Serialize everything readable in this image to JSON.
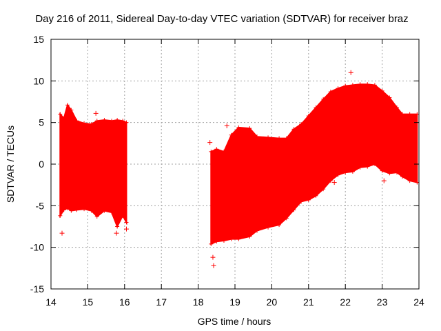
{
  "chart_data": {
    "type": "scatter",
    "title": "Day 216 of 2011, Sidereal Day-to-day VTEC variation (SDTVAR) for receiver braz",
    "xlabel": "GPS time / hours",
    "ylabel": "SDTVAR / TECUs",
    "xlim": [
      14,
      24
    ],
    "ylim": [
      -15,
      15
    ],
    "x_ticks": [
      "14",
      "15",
      "16",
      "17",
      "18",
      "19",
      "20",
      "21",
      "22",
      "23",
      "24"
    ],
    "y_ticks": [
      "15",
      "10",
      "5",
      "0",
      "-5",
      "-10",
      "-15"
    ],
    "grid": true,
    "marker": "+",
    "series_color": "#ff0000",
    "series": [
      {
        "segment": 1,
        "envelope": [
          {
            "x": 14.25,
            "ymin": -6.2,
            "ymax": 6.0
          },
          {
            "x": 14.35,
            "ymin": -5.5,
            "ymax": 5.5
          },
          {
            "x": 14.45,
            "ymin": -5.3,
            "ymax": 7.1
          },
          {
            "x": 14.55,
            "ymin": -5.6,
            "ymax": 6.5
          },
          {
            "x": 14.7,
            "ymin": -5.5,
            "ymax": 5.2
          },
          {
            "x": 14.9,
            "ymin": -5.4,
            "ymax": 4.9
          },
          {
            "x": 15.1,
            "ymin": -5.6,
            "ymax": 4.8
          },
          {
            "x": 15.25,
            "ymin": -6.3,
            "ymax": 5.2
          },
          {
            "x": 15.45,
            "ymin": -5.6,
            "ymax": 5.3
          },
          {
            "x": 15.65,
            "ymin": -5.8,
            "ymax": 5.2
          },
          {
            "x": 15.8,
            "ymin": -7.5,
            "ymax": 5.3
          },
          {
            "x": 15.95,
            "ymin": -6.2,
            "ymax": 5.2
          },
          {
            "x": 16.05,
            "ymin": -7.0,
            "ymax": 5.0
          }
        ],
        "outliers": [
          {
            "x": 14.3,
            "y": -8.3
          },
          {
            "x": 15.22,
            "y": 6.1
          },
          {
            "x": 15.78,
            "y": -8.3
          },
          {
            "x": 16.05,
            "y": -7.8
          }
        ]
      },
      {
        "segment": 2,
        "envelope": [
          {
            "x": 18.35,
            "ymin": -9.6,
            "ymax": 1.5
          },
          {
            "x": 18.5,
            "ymin": -9.3,
            "ymax": 1.8
          },
          {
            "x": 18.7,
            "ymin": -9.2,
            "ymax": 1.5
          },
          {
            "x": 18.9,
            "ymin": -9.0,
            "ymax": 3.5
          },
          {
            "x": 19.1,
            "ymin": -9.0,
            "ymax": 4.4
          },
          {
            "x": 19.4,
            "ymin": -8.7,
            "ymax": 4.3
          },
          {
            "x": 19.6,
            "ymin": -8.0,
            "ymax": 3.3
          },
          {
            "x": 19.9,
            "ymin": -7.6,
            "ymax": 3.2
          },
          {
            "x": 20.2,
            "ymin": -7.3,
            "ymax": 3.1
          },
          {
            "x": 20.4,
            "ymin": -6.5,
            "ymax": 3.1
          },
          {
            "x": 20.6,
            "ymin": -5.5,
            "ymax": 4.2
          },
          {
            "x": 20.8,
            "ymin": -4.5,
            "ymax": 4.8
          },
          {
            "x": 21.0,
            "ymin": -4.3,
            "ymax": 5.8
          },
          {
            "x": 21.2,
            "ymin": -3.8,
            "ymax": 6.8
          },
          {
            "x": 21.4,
            "ymin": -3.0,
            "ymax": 7.8
          },
          {
            "x": 21.6,
            "ymin": -2.0,
            "ymax": 8.7
          },
          {
            "x": 21.8,
            "ymin": -1.3,
            "ymax": 9.1
          },
          {
            "x": 22.0,
            "ymin": -1.0,
            "ymax": 9.4
          },
          {
            "x": 22.2,
            "ymin": -0.9,
            "ymax": 9.5
          },
          {
            "x": 22.4,
            "ymin": -0.4,
            "ymax": 9.6
          },
          {
            "x": 22.6,
            "ymin": -0.3,
            "ymax": 9.6
          },
          {
            "x": 22.8,
            "ymin": 0.0,
            "ymax": 9.5
          },
          {
            "x": 23.0,
            "ymin": -0.8,
            "ymax": 8.8
          },
          {
            "x": 23.2,
            "ymin": -1.1,
            "ymax": 8.0
          },
          {
            "x": 23.4,
            "ymin": -1.0,
            "ymax": 6.8
          },
          {
            "x": 23.55,
            "ymin": -1.5,
            "ymax": 6.0
          },
          {
            "x": 23.75,
            "ymin": -2.0,
            "ymax": 6.0
          },
          {
            "x": 23.95,
            "ymin": -2.2,
            "ymax": 6.0
          }
        ],
        "outliers": [
          {
            "x": 18.32,
            "y": 2.6
          },
          {
            "x": 18.4,
            "y": -11.2
          },
          {
            "x": 18.42,
            "y": -12.2
          },
          {
            "x": 18.78,
            "y": 4.6
          },
          {
            "x": 22.15,
            "y": 11.0
          },
          {
            "x": 23.05,
            "y": -2.0
          },
          {
            "x": 21.7,
            "y": -2.2
          }
        ]
      }
    ]
  }
}
